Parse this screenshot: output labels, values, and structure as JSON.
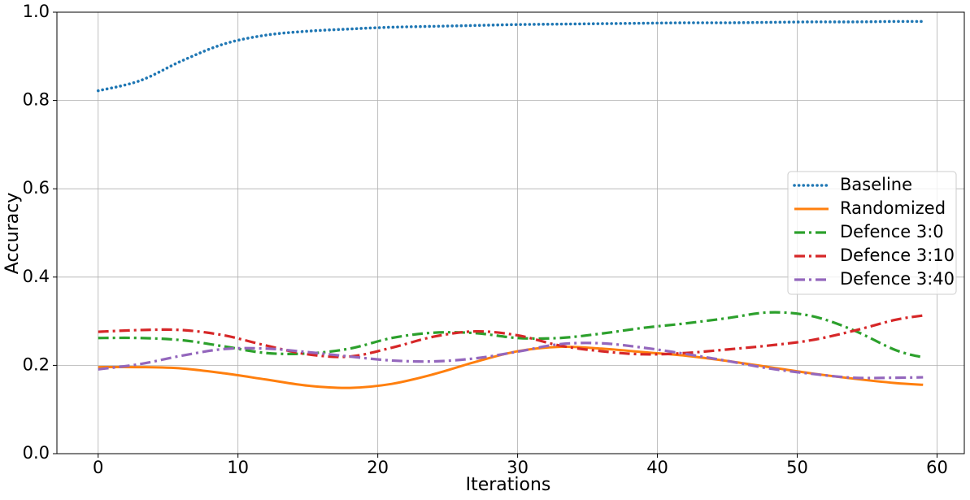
{
  "chart_data": {
    "type": "line",
    "xlabel": "Iterations",
    "ylabel": "Accuracy",
    "x": [
      0,
      3,
      6,
      9,
      12,
      15,
      18,
      21,
      24,
      27,
      30,
      33,
      36,
      39,
      42,
      45,
      48,
      51,
      54,
      57,
      59
    ],
    "series": [
      {
        "name": "Baseline",
        "color": "#1f77b4",
        "linestyle": "dotted",
        "values": [
          0.822,
          0.845,
          0.89,
          0.928,
          0.948,
          0.957,
          0.962,
          0.966,
          0.968,
          0.97,
          0.972,
          0.973,
          0.974,
          0.975,
          0.976,
          0.976,
          0.977,
          0.978,
          0.978,
          0.979,
          0.979
        ]
      },
      {
        "name": "Randomized",
        "color": "#ff7f0e",
        "linestyle": "solid",
        "values": [
          0.196,
          0.196,
          0.193,
          0.182,
          0.168,
          0.154,
          0.149,
          0.158,
          0.18,
          0.208,
          0.232,
          0.242,
          0.238,
          0.23,
          0.222,
          0.21,
          0.196,
          0.182,
          0.17,
          0.16,
          0.156
        ]
      },
      {
        "name": "Defence 3:0",
        "color": "#2ca02c",
        "linestyle": "dashdot",
        "values": [
          0.262,
          0.262,
          0.257,
          0.243,
          0.228,
          0.227,
          0.238,
          0.262,
          0.274,
          0.273,
          0.262,
          0.262,
          0.272,
          0.285,
          0.295,
          0.307,
          0.32,
          0.312,
          0.28,
          0.235,
          0.218
        ]
      },
      {
        "name": "Defence 3:10",
        "color": "#d62728",
        "linestyle": "dashdot",
        "values": [
          0.276,
          0.28,
          0.28,
          0.268,
          0.245,
          0.225,
          0.22,
          0.24,
          0.265,
          0.277,
          0.268,
          0.245,
          0.232,
          0.225,
          0.228,
          0.236,
          0.245,
          0.257,
          0.278,
          0.303,
          0.313
        ]
      },
      {
        "name": "Defence 3:40",
        "color": "#9467bd",
        "linestyle": "dashdot",
        "values": [
          0.191,
          0.203,
          0.222,
          0.237,
          0.238,
          0.23,
          0.22,
          0.211,
          0.209,
          0.216,
          0.231,
          0.248,
          0.25,
          0.24,
          0.226,
          0.21,
          0.193,
          0.181,
          0.172,
          0.172,
          0.173
        ]
      }
    ],
    "xlim": [
      -2.95,
      61.95
    ],
    "xticks": [
      0,
      10,
      20,
      30,
      40,
      50,
      60
    ],
    "ylim": [
      0,
      1
    ],
    "yticks": [
      {
        "value": 0,
        "label": "0.0"
      },
      0.2,
      0.4,
      0.6,
      0.8,
      {
        "value": 1,
        "label": "1.0"
      }
    ],
    "grid": true,
    "legend": "center right"
  }
}
